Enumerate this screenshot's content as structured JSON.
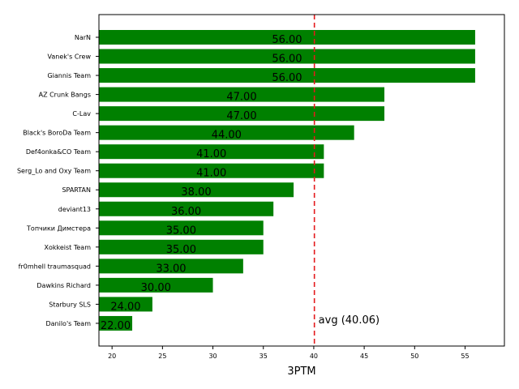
{
  "chart_data": {
    "type": "bar",
    "orientation": "horizontal",
    "title": "",
    "xlabel": "3PTM",
    "ylabel": "",
    "xlim": [
      18.7,
      58.9
    ],
    "xticks": [
      20,
      25,
      30,
      35,
      40,
      45,
      50,
      55
    ],
    "grid": false,
    "bar_color": "#008000",
    "categories": [
      "NarN",
      "Vanek's Crew",
      "Giannis Team",
      "AZ Crunk Bangs",
      "C-Lav",
      "Black's BoroDa Team",
      "Def4onka&CO Team",
      "Serg_Lo and Oxy Team",
      "SPARTAN",
      "deviant13",
      "Топчики Димстера",
      "Xokkeist Team",
      "fr0mhell traumasquad",
      "Dawkins Richard",
      "Starbury SLS",
      "Danilo's Team"
    ],
    "values": [
      56,
      56,
      56,
      47,
      47,
      44,
      41,
      41,
      38,
      36,
      35,
      35,
      33,
      30,
      24,
      22
    ],
    "value_labels": [
      "56.00",
      "56.00",
      "56.00",
      "47.00",
      "47.00",
      "44.00",
      "41.00",
      "41.00",
      "38.00",
      "36.00",
      "35.00",
      "35.00",
      "33.00",
      "30.00",
      "24.00",
      "22.00"
    ],
    "reference_line": {
      "value": 40.06,
      "label": "avg (40.06)",
      "color": "#d62728",
      "style": "dashed"
    }
  }
}
